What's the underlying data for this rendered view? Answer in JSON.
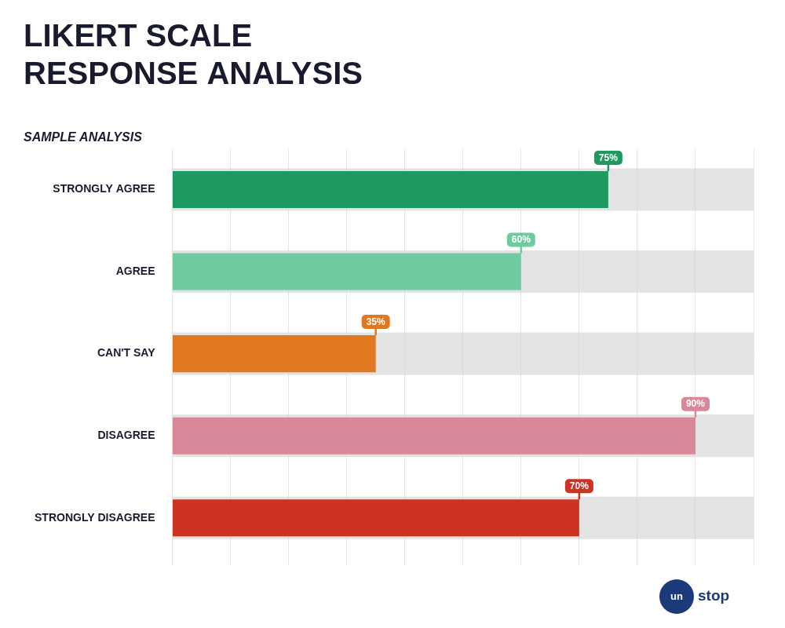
{
  "chart_data": {
    "type": "bar",
    "orientation": "horizontal",
    "subtitle": "SAMPLE ANALYSIS",
    "title": [
      "LIKERT SCALE",
      "RESPONSE ANALYSIS"
    ],
    "categories": [
      "STRONGLY AGREE",
      "AGREE",
      "CAN'T SAY",
      "DISAGREE",
      "STRONGLY DISAGREE"
    ],
    "values": [
      75,
      60,
      35,
      90,
      70
    ],
    "value_labels": [
      "75%",
      "60%",
      "35%",
      "90%",
      "70%"
    ],
    "data_labels": true,
    "colors": [
      "#1e9960",
      "#6ecba0",
      "#e07820",
      "#d88898",
      "#cc3322"
    ],
    "xlim": [
      0,
      100
    ],
    "xticks": [
      0,
      10,
      20,
      30,
      40,
      50,
      60,
      70,
      80,
      90,
      100
    ],
    "grid": true,
    "tick_labels": "y",
    "annotations": [
      "un",
      "stop"
    ]
  }
}
